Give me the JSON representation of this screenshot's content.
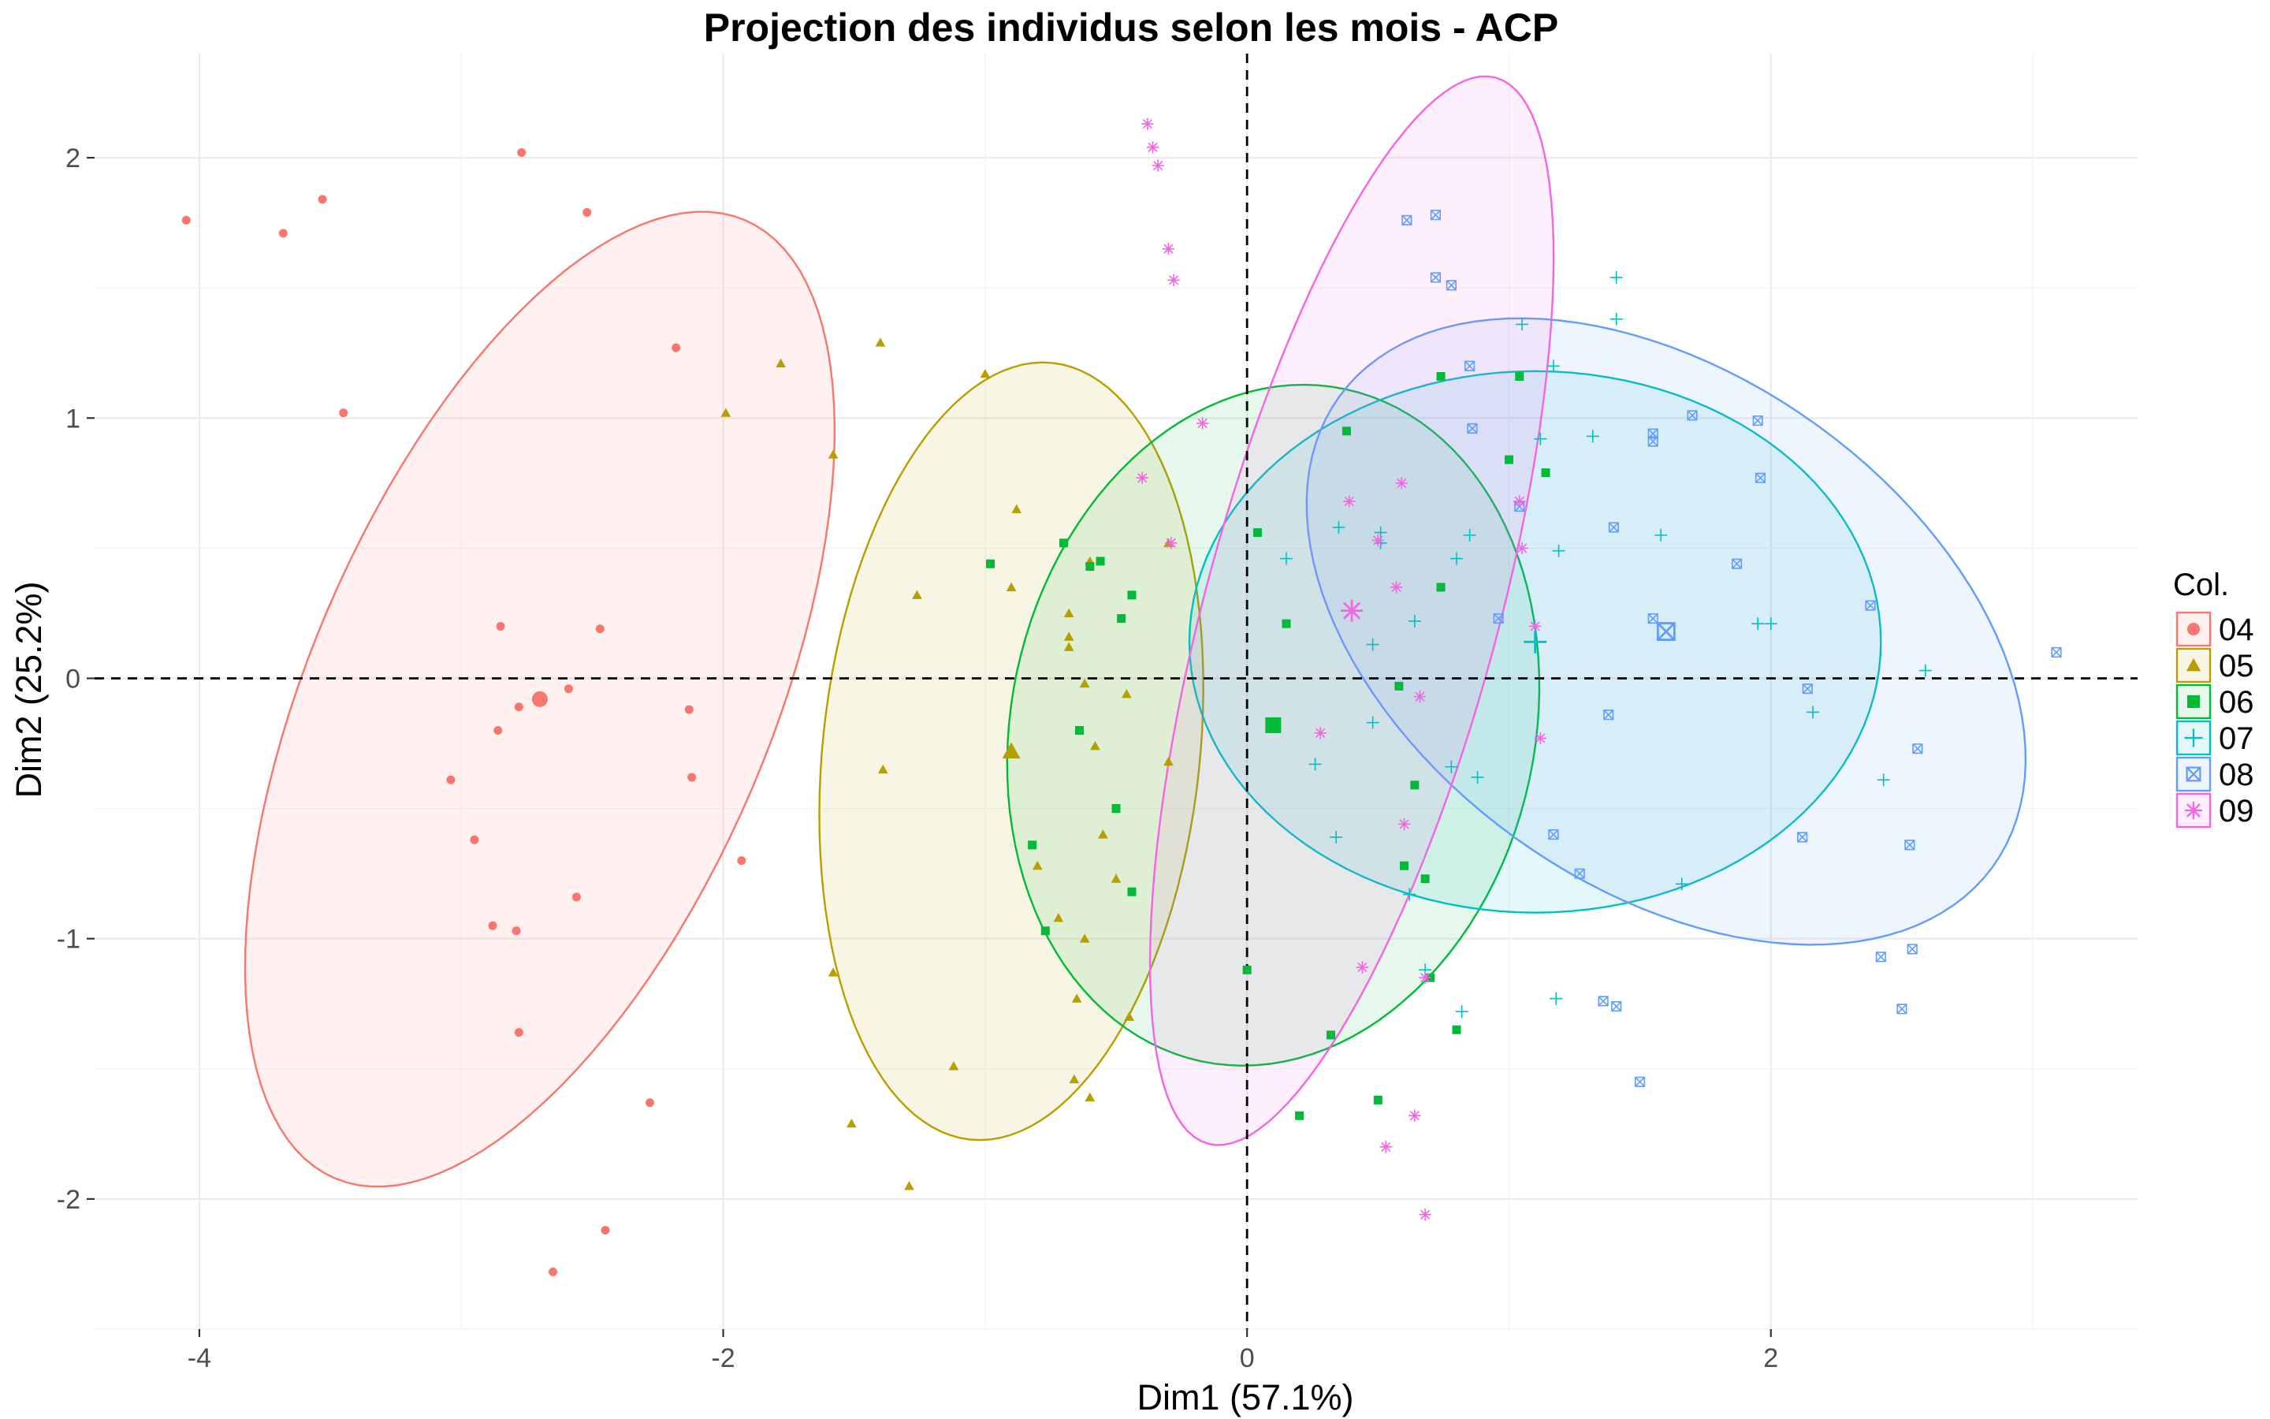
{
  "chart_data": {
    "type": "scatter",
    "title": "Projection des individus selon les mois - ACP",
    "xlabel": "Dim1 (57.1%)",
    "ylabel": "Dim2 (25.2%)",
    "xlim": [
      -4.4,
      3.4
    ],
    "ylim": [
      -2.5,
      2.4
    ],
    "x_ticks": [
      -4,
      -2,
      0,
      2
    ],
    "y_ticks": [
      -2,
      -1,
      0,
      1,
      2
    ],
    "x_tick_labels": [
      "-4",
      "-2",
      "0",
      "2"
    ],
    "y_tick_labels": [
      "-2",
      "-1",
      "0",
      "1",
      "2"
    ],
    "grid": true,
    "zero_lines": "dashed",
    "legend_title": "Col.",
    "legend_position": "right",
    "series": [
      {
        "name": "04",
        "color": "#F8766D",
        "shape": "circle",
        "centroid": [
          -2.7,
          -0.08
        ],
        "ellipse": {
          "cx": -2.7,
          "cy": -0.08,
          "semi_major": 2.0,
          "semi_minor": 0.88,
          "angle_deg": 67
        },
        "points": [
          [
            -4.05,
            1.76
          ],
          [
            -3.68,
            1.71
          ],
          [
            -3.53,
            1.84
          ],
          [
            -3.45,
            1.02
          ],
          [
            -2.77,
            2.02
          ],
          [
            -2.52,
            1.79
          ],
          [
            -2.18,
            1.27
          ],
          [
            -2.85,
            0.2
          ],
          [
            -2.47,
            0.19
          ],
          [
            -2.78,
            -0.11
          ],
          [
            -2.59,
            -0.04
          ],
          [
            -2.13,
            -0.12
          ],
          [
            -2.86,
            -0.2
          ],
          [
            -3.04,
            -0.39
          ],
          [
            -2.12,
            -0.38
          ],
          [
            -2.95,
            -0.62
          ],
          [
            -1.93,
            -0.7
          ],
          [
            -2.56,
            -0.84
          ],
          [
            -2.88,
            -0.95
          ],
          [
            -2.79,
            -0.97
          ],
          [
            -2.78,
            -1.36
          ],
          [
            -2.28,
            -1.63
          ],
          [
            -2.45,
            -2.12
          ],
          [
            -2.65,
            -2.28
          ]
        ]
      },
      {
        "name": "05",
        "color": "#B79F00",
        "shape": "triangle",
        "centroid": [
          -0.9,
          -0.28
        ],
        "ellipse": {
          "cx": -0.9,
          "cy": -0.28,
          "semi_major": 1.5,
          "semi_minor": 0.72,
          "angle_deg": 84
        },
        "points": [
          [
            -1.4,
            1.29
          ],
          [
            -1.78,
            1.21
          ],
          [
            -1.0,
            1.17
          ],
          [
            -1.99,
            1.02
          ],
          [
            -1.58,
            0.86
          ],
          [
            -0.88,
            0.65
          ],
          [
            -0.3,
            0.52
          ],
          [
            -0.6,
            0.45
          ],
          [
            -0.9,
            0.35
          ],
          [
            -1.26,
            0.32
          ],
          [
            -0.68,
            0.25
          ],
          [
            -0.68,
            0.16
          ],
          [
            -0.68,
            0.12
          ],
          [
            -0.62,
            -0.02
          ],
          [
            -0.46,
            -0.06
          ],
          [
            -0.58,
            -0.26
          ],
          [
            -0.3,
            -0.32
          ],
          [
            -1.39,
            -0.35
          ],
          [
            -0.55,
            -0.6
          ],
          [
            -0.8,
            -0.72
          ],
          [
            -0.5,
            -0.77
          ],
          [
            -0.72,
            -0.92
          ],
          [
            -0.62,
            -1.0
          ],
          [
            -1.58,
            -1.13
          ],
          [
            -0.65,
            -1.23
          ],
          [
            -0.45,
            -1.3
          ],
          [
            -1.12,
            -1.49
          ],
          [
            -0.66,
            -1.54
          ],
          [
            -0.6,
            -1.61
          ],
          [
            -1.51,
            -1.71
          ],
          [
            -1.29,
            -1.95
          ]
        ]
      },
      {
        "name": "06",
        "color": "#00BA38",
        "shape": "square",
        "centroid": [
          0.1,
          -0.18
        ],
        "ellipse": {
          "cx": 0.1,
          "cy": -0.18,
          "semi_major": 1.32,
          "semi_minor": 1.0,
          "angle_deg": 78
        },
        "points": [
          [
            0.74,
            1.16
          ],
          [
            1.04,
            1.16
          ],
          [
            0.38,
            0.95
          ],
          [
            1.0,
            0.84
          ],
          [
            1.14,
            0.79
          ],
          [
            0.04,
            0.56
          ],
          [
            -0.7,
            0.52
          ],
          [
            -0.56,
            0.45
          ],
          [
            -0.6,
            0.43
          ],
          [
            -0.98,
            0.44
          ],
          [
            -0.44,
            0.32
          ],
          [
            0.74,
            0.35
          ],
          [
            -0.48,
            0.23
          ],
          [
            0.15,
            0.21
          ],
          [
            0.58,
            -0.03
          ],
          [
            -0.64,
            -0.2
          ],
          [
            -0.5,
            -0.5
          ],
          [
            0.64,
            -0.41
          ],
          [
            -0.82,
            -0.64
          ],
          [
            0.6,
            -0.72
          ],
          [
            0.68,
            -0.77
          ],
          [
            -0.44,
            -0.82
          ],
          [
            -0.77,
            -0.97
          ],
          [
            0.0,
            -1.12
          ],
          [
            0.7,
            -1.15
          ],
          [
            0.32,
            -1.37
          ],
          [
            0.8,
            -1.35
          ],
          [
            0.2,
            -1.68
          ],
          [
            0.5,
            -1.62
          ]
        ]
      },
      {
        "name": "07",
        "color": "#00BFC4",
        "shape": "plus",
        "centroid": [
          1.1,
          0.14
        ],
        "ellipse": {
          "cx": 1.1,
          "cy": 0.14,
          "semi_major": 1.04,
          "semi_minor": 1.32,
          "angle_deg": 90
        },
        "points": [
          [
            1.41,
            1.54
          ],
          [
            1.41,
            1.38
          ],
          [
            1.05,
            1.36
          ],
          [
            1.17,
            1.2
          ],
          [
            1.12,
            0.92
          ],
          [
            1.32,
            0.93
          ],
          [
            1.19,
            0.49
          ],
          [
            0.35,
            0.58
          ],
          [
            0.51,
            0.56
          ],
          [
            0.51,
            0.52
          ],
          [
            0.8,
            0.46
          ],
          [
            0.15,
            0.46
          ],
          [
            0.85,
            0.55
          ],
          [
            1.58,
            0.55
          ],
          [
            0.64,
            0.22
          ],
          [
            1.95,
            0.21
          ],
          [
            2.0,
            0.21
          ],
          [
            0.48,
            0.13
          ],
          [
            2.59,
            0.03
          ],
          [
            2.16,
            -0.13
          ],
          [
            0.48,
            -0.17
          ],
          [
            0.78,
            -0.34
          ],
          [
            0.26,
            -0.33
          ],
          [
            0.88,
            -0.38
          ],
          [
            2.43,
            -0.39
          ],
          [
            0.34,
            -0.61
          ],
          [
            0.62,
            -0.83
          ],
          [
            1.66,
            -0.79
          ],
          [
            0.68,
            -1.12
          ],
          [
            0.82,
            -1.28
          ],
          [
            1.18,
            -1.23
          ]
        ]
      },
      {
        "name": "08",
        "color": "#619CFF",
        "shape": "square-x",
        "centroid": [
          1.6,
          0.18
        ],
        "ellipse": {
          "cx": 1.6,
          "cy": 0.18,
          "semi_major": 1.54,
          "semi_minor": 0.98,
          "angle_deg": -36
        },
        "points": [
          [
            0.61,
            1.76
          ],
          [
            0.72,
            1.78
          ],
          [
            0.72,
            1.54
          ],
          [
            0.78,
            1.51
          ],
          [
            0.85,
            1.2
          ],
          [
            0.86,
            0.96
          ],
          [
            1.7,
            1.01
          ],
          [
            1.55,
            0.91
          ],
          [
            1.55,
            0.94
          ],
          [
            1.95,
            0.99
          ],
          [
            1.96,
            0.77
          ],
          [
            1.04,
            0.66
          ],
          [
            1.4,
            0.58
          ],
          [
            1.87,
            0.44
          ],
          [
            2.38,
            0.28
          ],
          [
            0.96,
            0.23
          ],
          [
            1.55,
            0.23
          ],
          [
            3.09,
            0.1
          ],
          [
            2.14,
            -0.04
          ],
          [
            1.38,
            -0.14
          ],
          [
            2.56,
            -0.27
          ],
          [
            2.12,
            -0.61
          ],
          [
            1.17,
            -0.6
          ],
          [
            2.53,
            -0.64
          ],
          [
            1.27,
            -0.75
          ],
          [
            2.42,
            -1.07
          ],
          [
            2.54,
            -1.04
          ],
          [
            1.36,
            -1.24
          ],
          [
            1.41,
            -1.26
          ],
          [
            2.5,
            -1.27
          ],
          [
            1.5,
            -1.55
          ]
        ]
      },
      {
        "name": "09",
        "color": "#F564E3",
        "shape": "asterisk",
        "centroid": [
          0.4,
          0.26
        ],
        "ellipse": {
          "cx": 0.4,
          "cy": 0.26,
          "semi_major": 2.12,
          "semi_minor": 0.56,
          "angle_deg": 75
        },
        "points": [
          [
            -0.38,
            2.13
          ],
          [
            -0.36,
            2.04
          ],
          [
            -0.34,
            1.97
          ],
          [
            -0.3,
            1.65
          ],
          [
            -0.28,
            1.53
          ],
          [
            -0.17,
            0.98
          ],
          [
            -0.4,
            0.77
          ],
          [
            0.39,
            0.68
          ],
          [
            0.59,
            0.75
          ],
          [
            1.04,
            0.68
          ],
          [
            1.05,
            0.5
          ],
          [
            0.5,
            0.53
          ],
          [
            -0.29,
            0.52
          ],
          [
            0.4,
            0.26
          ],
          [
            0.57,
            0.35
          ],
          [
            1.1,
            0.2
          ],
          [
            0.66,
            -0.07
          ],
          [
            0.28,
            -0.21
          ],
          [
            1.12,
            -0.23
          ],
          [
            0.6,
            -0.56
          ],
          [
            0.44,
            -1.11
          ],
          [
            0.68,
            -1.15
          ],
          [
            0.64,
            -1.68
          ],
          [
            0.53,
            -1.8
          ],
          [
            0.68,
            -2.06
          ]
        ]
      }
    ]
  }
}
